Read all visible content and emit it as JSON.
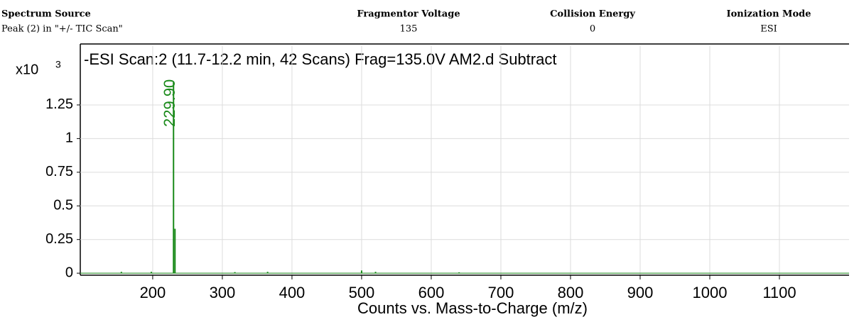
{
  "header": {
    "columns": [
      {
        "title": "Spectrum Source",
        "value": "Peak (2) in \"+/- TIC Scan\""
      },
      {
        "title": "Fragmentor Voltage",
        "value": "135"
      },
      {
        "title": "Collision Energy",
        "value": "0"
      },
      {
        "title": "Ionization Mode",
        "value": "ESI"
      }
    ]
  },
  "chart_data": {
    "type": "stem",
    "title": "-ESI Scan:2 (11.7-12.2 min, 42 Scans) Frag=135.0V AM2.d  Subtract",
    "y_scale_label": "x10",
    "y_scale_exponent": "3",
    "x_label": "Counts vs. Mass-to-Charge (m/z)",
    "x": [
      155,
      198,
      229.9,
      232,
      318,
      365,
      500,
      520,
      640
    ],
    "values": [
      0.01,
      0.01,
      1.42,
      0.33,
      0.008,
      0.01,
      0.02,
      0.01,
      0.006
    ],
    "peak_labels": [
      {
        "value": 229.9,
        "label": "229.90"
      }
    ],
    "color": "#1a8a1a",
    "xlim": [
      96,
      1200
    ],
    "xticks": [
      200,
      300,
      400,
      500,
      600,
      700,
      800,
      900,
      1000,
      1100
    ],
    "ylim": [
      -0.015,
      1.45
    ],
    "yticks": [
      0,
      0.25,
      0.5,
      0.75,
      1,
      1.25
    ],
    "grid": true
  }
}
